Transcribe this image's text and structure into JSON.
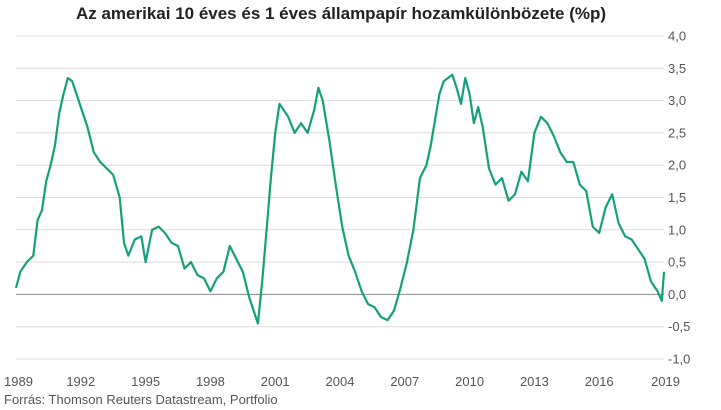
{
  "chart_data": {
    "type": "line",
    "title": "Az amerikai 10 éves és 1 éves állampapír hozamkülönbözete (%p)",
    "source": "Forrás: Thomson Reuters Datastream, Portfolio",
    "xlabel": "",
    "ylabel": "",
    "xlim": [
      1989.0,
      2019.0
    ],
    "ylim": [
      -1.0,
      4.0
    ],
    "x_ticks": [
      1989,
      1992,
      1995,
      1998,
      2001,
      2004,
      2007,
      2010,
      2013,
      2016,
      2019
    ],
    "y_ticks": [
      "4,0",
      "3,5",
      "3,0",
      "2,5",
      "2,0",
      "1,5",
      "1,0",
      "0,5",
      "0,0",
      "-0,5",
      "-1,0"
    ],
    "y_tick_values": [
      4.0,
      3.5,
      3.0,
      2.5,
      2.0,
      1.5,
      1.0,
      0.5,
      0.0,
      -0.5,
      -1.0
    ],
    "grid": true,
    "line_color": "#14a07a",
    "series": [
      {
        "x": [
          1989.0,
          1989.2,
          1989.5,
          1989.8,
          1990.0,
          1990.2,
          1990.4,
          1990.6,
          1990.8,
          1991.0,
          1991.2,
          1991.4,
          1991.6,
          1991.8,
          1992.0,
          1992.3,
          1992.6,
          1992.9,
          1993.2,
          1993.5,
          1993.8,
          1994.0,
          1994.2,
          1994.5,
          1994.8,
          1995.0,
          1995.3,
          1995.6,
          1995.9,
          1996.2,
          1996.5,
          1996.8,
          1997.1,
          1997.4,
          1997.7,
          1998.0,
          1998.3,
          1998.6,
          1998.9,
          1999.2,
          1999.5,
          1999.8,
          2000.0,
          2000.2,
          2000.4,
          2000.6,
          2000.8,
          2001.0,
          2001.2,
          2001.4,
          2001.6,
          2001.9,
          2002.2,
          2002.5,
          2002.8,
          2003.0,
          2003.2,
          2003.5,
          2003.8,
          2004.1,
          2004.4,
          2004.7,
          2005.0,
          2005.3,
          2005.6,
          2005.9,
          2006.2,
          2006.5,
          2006.8,
          2007.1,
          2007.4,
          2007.7,
          2008.0,
          2008.2,
          2008.4,
          2008.6,
          2008.8,
          2009.0,
          2009.2,
          2009.4,
          2009.6,
          2009.8,
          2010.0,
          2010.2,
          2010.4,
          2010.6,
          2010.9,
          2011.2,
          2011.5,
          2011.8,
          2012.1,
          2012.4,
          2012.7,
          2013.0,
          2013.3,
          2013.6,
          2013.9,
          2014.2,
          2014.5,
          2014.8,
          2015.1,
          2015.4,
          2015.7,
          2016.0,
          2016.3,
          2016.6,
          2016.9,
          2017.2,
          2017.5,
          2017.8,
          2018.1,
          2018.4,
          2018.7,
          2018.9,
          2019.0
        ],
        "y": [
          0.1,
          0.35,
          0.5,
          0.6,
          1.15,
          1.3,
          1.75,
          2.0,
          2.3,
          2.8,
          3.1,
          3.35,
          3.3,
          3.1,
          2.9,
          2.6,
          2.2,
          2.05,
          1.95,
          1.85,
          1.5,
          0.8,
          0.6,
          0.85,
          0.9,
          0.5,
          1.0,
          1.05,
          0.95,
          0.8,
          0.75,
          0.4,
          0.5,
          0.3,
          0.25,
          0.05,
          0.25,
          0.35,
          0.75,
          0.55,
          0.35,
          -0.05,
          -0.25,
          -0.45,
          0.2,
          1.0,
          1.8,
          2.5,
          2.95,
          2.85,
          2.75,
          2.5,
          2.65,
          2.5,
          2.85,
          3.2,
          3.0,
          2.4,
          1.7,
          1.05,
          0.6,
          0.35,
          0.05,
          -0.15,
          -0.2,
          -0.35,
          -0.4,
          -0.25,
          0.1,
          0.5,
          1.0,
          1.8,
          2.0,
          2.3,
          2.7,
          3.1,
          3.3,
          3.35,
          3.4,
          3.2,
          2.95,
          3.35,
          3.1,
          2.65,
          2.9,
          2.6,
          1.95,
          1.7,
          1.8,
          1.45,
          1.55,
          1.9,
          1.75,
          2.5,
          2.75,
          2.65,
          2.45,
          2.2,
          2.05,
          2.05,
          1.7,
          1.6,
          1.05,
          0.95,
          1.35,
          1.55,
          1.1,
          0.9,
          0.85,
          0.7,
          0.55,
          0.2,
          0.05,
          -0.1,
          0.35
        ]
      }
    ]
  }
}
